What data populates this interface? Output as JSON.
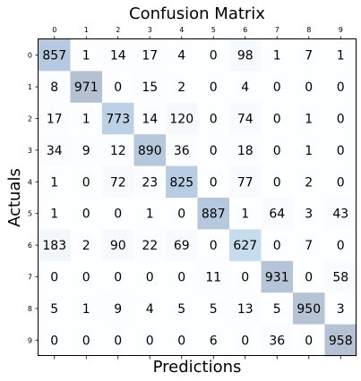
{
  "chart_data": {
    "type": "heatmap",
    "title": "Confusion Matrix",
    "xlabel": "Predictions",
    "ylabel": "Actuals",
    "x_categories": [
      "0",
      "1",
      "2",
      "3",
      "4",
      "5",
      "6",
      "7",
      "8",
      "9"
    ],
    "y_categories": [
      "0",
      "1",
      "2",
      "3",
      "4",
      "5",
      "6",
      "7",
      "8",
      "9"
    ],
    "x_ticks_position": "top",
    "colormap": "Blues",
    "cell_alpha": 0.3,
    "grid": false,
    "matrix": [
      [
        857,
        1,
        14,
        17,
        4,
        0,
        98,
        1,
        7,
        1
      ],
      [
        8,
        971,
        0,
        15,
        2,
        0,
        4,
        0,
        0,
        0
      ],
      [
        17,
        1,
        773,
        14,
        120,
        0,
        74,
        0,
        1,
        0
      ],
      [
        34,
        9,
        12,
        890,
        36,
        0,
        18,
        0,
        1,
        0
      ],
      [
        1,
        0,
        72,
        23,
        825,
        0,
        77,
        0,
        2,
        0
      ],
      [
        1,
        0,
        0,
        1,
        0,
        887,
        1,
        64,
        3,
        43
      ],
      [
        183,
        2,
        90,
        22,
        69,
        0,
        627,
        0,
        7,
        0
      ],
      [
        0,
        0,
        0,
        0,
        0,
        11,
        0,
        931,
        0,
        58
      ],
      [
        5,
        1,
        9,
        4,
        5,
        5,
        13,
        5,
        950,
        3
      ],
      [
        0,
        0,
        0,
        0,
        0,
        6,
        0,
        36,
        0,
        958
      ]
    ]
  }
}
